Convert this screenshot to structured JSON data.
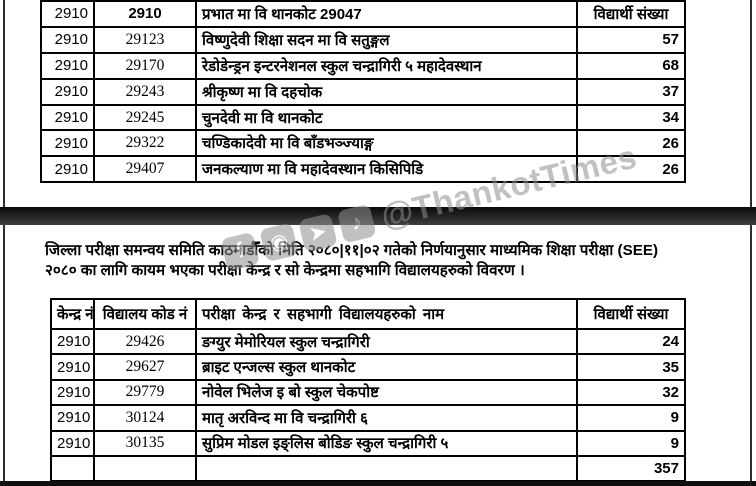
{
  "colors": {
    "page_background": "#ffffff",
    "table_border": "#000000",
    "divider_band": "#1a1a1a",
    "watermark_gray": "#8f8f8f"
  },
  "watermark": {
    "handle": "@ThankotTimes",
    "icons": [
      {
        "name": "facebook-icon",
        "glyph": "f"
      },
      {
        "name": "instagram-icon",
        "glyph": "◉"
      },
      {
        "name": "telegram-icon",
        "glyph": "➤"
      },
      {
        "name": "tiktok-icon",
        "glyph": "♪"
      }
    ]
  },
  "top_table": {
    "header_row": {
      "center_no": "2910",
      "code": "2910",
      "name": "प्रभात मा वि थानकोट  29047",
      "count_label": "विद्यार्थी संख्या"
    },
    "rows": [
      {
        "center_no": "2910",
        "school_code": "29123",
        "school_name": "विष्णुदेवी शिक्षा सदन मा वि सतुङ्गल",
        "students": "57"
      },
      {
        "center_no": "2910",
        "school_code": "29170",
        "school_name": "रेडोडेन्ड्रन इन्टरनेशनल स्कुल चन्द्रागिरी ५ महादेवस्थान",
        "students": "68"
      },
      {
        "center_no": "2910",
        "school_code": "29243",
        "school_name": "श्रीकृष्ण मा वि दहचोक",
        "students": "37"
      },
      {
        "center_no": "2910",
        "school_code": "29245",
        "school_name": "चुनदेवी मा वि थानकोट",
        "students": "34"
      },
      {
        "center_no": "2910",
        "school_code": "29322",
        "school_name": "चण्डिकादेवी मा वि बाँडभञ्ज्याङ्ग",
        "students": "26"
      },
      {
        "center_no": "2910",
        "school_code": "29407",
        "school_name": "जनकल्याण मा वि महादेवस्थान किसिपिडि",
        "students": "26"
      }
    ]
  },
  "notice": {
    "line1": "जिल्ला परीक्षा समन्वय समिति काठमाडौँको मिति २०८०|११|०२ गतेको निर्णयानुसार माध्यमिक शिक्षा परीक्षा (SEE)",
    "line2": "२०८० का लागि कायम भएका परीक्षा केन्द्र र सो केन्द्रमा सहभागि विद्यालयहरुको विवरण ।"
  },
  "bottom_table": {
    "headers": [
      "केन्द्र नं",
      "विद्यालय कोड नं",
      "परीक्षा केन्द्र र सहभागी विद्यालयहरुको नाम",
      "विद्यार्थी संख्या"
    ],
    "rows": [
      {
        "center_no": "2910",
        "school_code": "29426",
        "school_name": "ङग्युर मेमोरियल स्कुल चन्द्रागिरी",
        "students": "24"
      },
      {
        "center_no": "2910",
        "school_code": "29627",
        "school_name": "ब्राइट एन्जल्स स्कुल थानकोट",
        "students": "35"
      },
      {
        "center_no": "2910",
        "school_code": "29779",
        "school_name": "नोवेल भिलेज इ बो स्कुल चेकपोष्ट",
        "students": "32"
      },
      {
        "center_no": "2910",
        "school_code": "30124",
        "school_name": "मातृ अरविन्द मा वि चन्द्रागिरी ६",
        "students": "9"
      },
      {
        "center_no": "2910",
        "school_code": "30135",
        "school_name": "सुप्रिम मोडल इङ्लिस बोडिङ स्कुल चन्द्रागिरी ५",
        "students": "9"
      }
    ],
    "total_row": {
      "center_no": "",
      "school_code": "",
      "school_name": "",
      "students_total": "357"
    }
  }
}
